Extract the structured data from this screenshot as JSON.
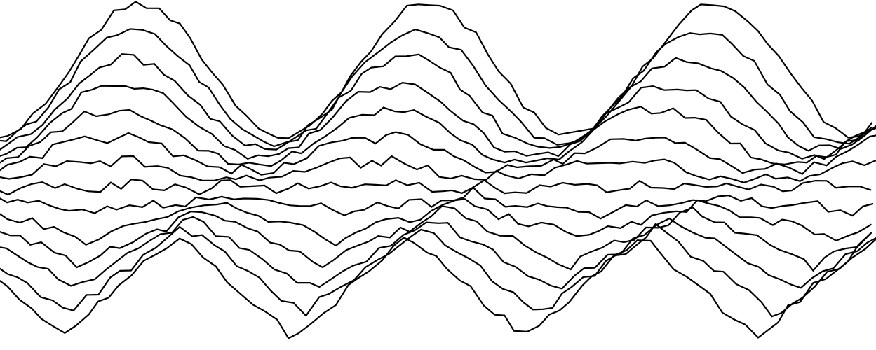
{
  "artwork": {
    "style": "stacked wavy line drawing",
    "stroke_color": "#000000",
    "background_color": "#ffffff",
    "line_count": 14
  }
}
